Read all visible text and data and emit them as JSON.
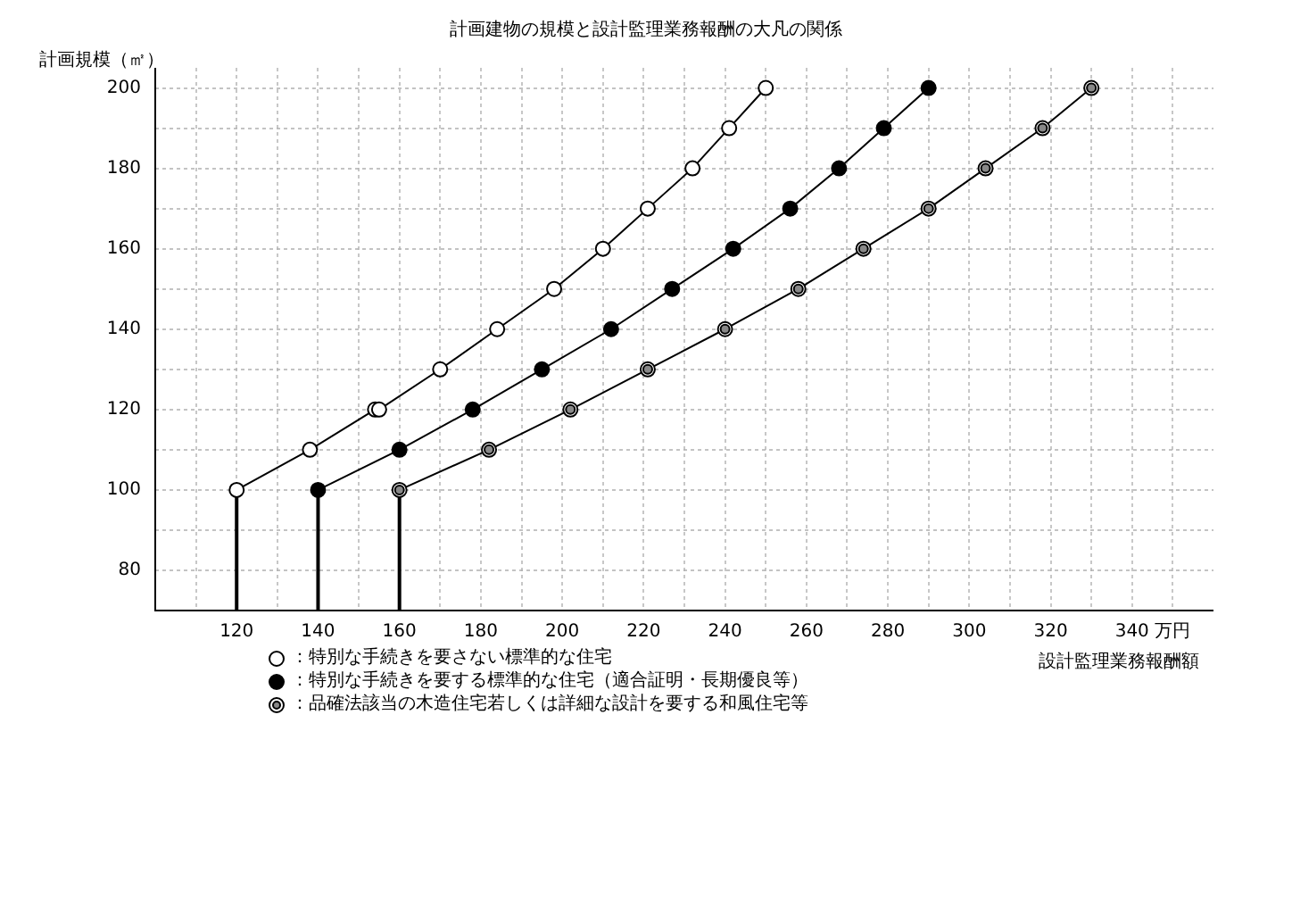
{
  "chart_data": {
    "type": "line",
    "title": "計画建物の規模と設計監理業務報酬の大凡の関係",
    "xlabel": "設計監理業務報酬額",
    "ylabel": "計画規模（㎡）",
    "xlim": [
      100,
      360
    ],
    "xticks": [
      {
        "value": 110,
        "label": null
      },
      120,
      {
        "value": 130,
        "label": null
      },
      140,
      {
        "value": 150,
        "label": null
      },
      160,
      {
        "value": 170,
        "label": null
      },
      180,
      {
        "value": 190,
        "label": null
      },
      200,
      {
        "value": 210,
        "label": null
      },
      220,
      {
        "value": 230,
        "label": null
      },
      240,
      {
        "value": 250,
        "label": null
      },
      260,
      {
        "value": 270,
        "label": null
      },
      280,
      {
        "value": 290,
        "label": null
      },
      300,
      {
        "value": 310,
        "label": null
      },
      320,
      {
        "value": 330,
        "label": null
      },
      340,
      {
        "value": 350,
        "label": "万円"
      }
    ],
    "ylim": [
      70,
      205
    ],
    "yticks": [
      80,
      {
        "value": 90,
        "label": null
      },
      100,
      {
        "value": 110,
        "label": null
      },
      120,
      {
        "value": 130,
        "label": null
      },
      140,
      {
        "value": 150,
        "label": null
      },
      160,
      {
        "value": 170,
        "label": null
      },
      180,
      {
        "value": 190,
        "label": null
      },
      200
    ],
    "grid": true,
    "legend": "bottom",
    "marker": "circle",
    "line_style": "solid",
    "series": [
      {
        "name": "：特別な手続きを要さない標準的な住宅",
        "color": "#000000",
        "x": [
          120,
          138,
          154,
          155,
          170,
          184,
          198,
          210,
          221,
          232,
          241,
          250
        ],
        "values": [
          100,
          110,
          120,
          120,
          130,
          140,
          150,
          160,
          170,
          180,
          190,
          200
        ],
        "errors": [
          [
            70,
            100
          ],
          null,
          null,
          null,
          null,
          null,
          null,
          null,
          null,
          null,
          null,
          null
        ]
      },
      {
        "name": "：特別な手続きを要する標準的な住宅（適合証明・長期優良等）",
        "color": "#000000",
        "x": [
          140,
          160,
          178,
          195,
          212,
          227,
          242,
          256,
          268,
          279,
          290
        ],
        "values": [
          100,
          110,
          120,
          130,
          140,
          150,
          160,
          170,
          180,
          190,
          200
        ],
        "errors": [
          [
            70,
            100
          ],
          null,
          null,
          null,
          null,
          null,
          null,
          null,
          null,
          null,
          null
        ]
      },
      {
        "name": "：品確法該当の木造住宅若しくは詳細な設計を要する和風住宅等",
        "color": "#000000",
        "x": [
          160,
          182,
          202,
          221,
          240,
          258,
          274,
          290,
          304,
          318,
          330
        ],
        "values": [
          100,
          110,
          120,
          130,
          140,
          150,
          160,
          170,
          180,
          190,
          200
        ],
        "errors": [
          [
            70,
            100
          ],
          null,
          null,
          null,
          null,
          null,
          null,
          null,
          null,
          null,
          null
        ]
      }
    ]
  }
}
